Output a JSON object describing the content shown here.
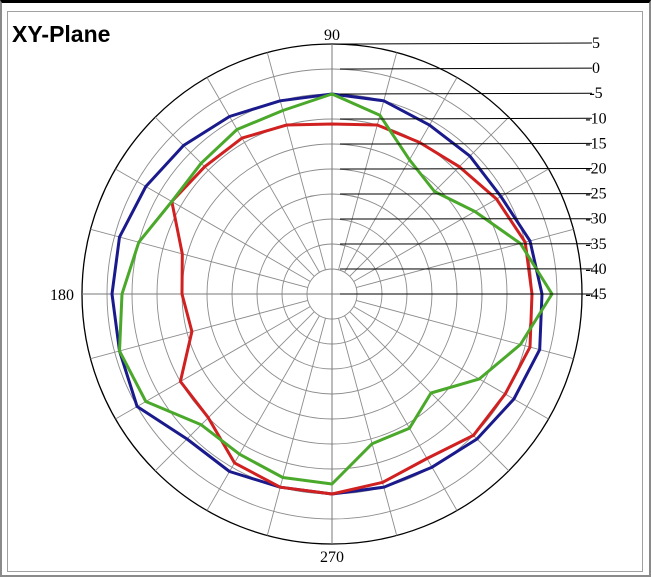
{
  "chart_data": {
    "type": "polar",
    "title": "XY-Plane",
    "angle_labels": [
      {
        "deg": 90,
        "text": "90"
      },
      {
        "deg": 180,
        "text": "180"
      },
      {
        "deg": 270,
        "text": "270"
      }
    ],
    "radial_ticks": [
      "5",
      "0",
      "-5",
      "-10",
      "-15",
      "-20",
      "-25",
      "-30",
      "-35",
      "-40",
      "-45"
    ],
    "rlim": [
      -45,
      5
    ],
    "angular_step_deg": 15,
    "grid": true,
    "series": [
      {
        "color": "#1a1a8c",
        "points": [
          [
            0,
            -3
          ],
          [
            15,
            -4
          ],
          [
            30,
            -6
          ],
          [
            45,
            -6
          ],
          [
            60,
            -6
          ],
          [
            75,
            -5
          ],
          [
            90,
            -5
          ],
          [
            105,
            -5
          ],
          [
            120,
            -4
          ],
          [
            135,
            -3
          ],
          [
            150,
            -2
          ],
          [
            165,
            -1
          ],
          [
            180,
            -1
          ],
          [
            195,
            -1
          ],
          [
            210,
            0
          ],
          [
            225,
            -4
          ],
          [
            240,
            -4
          ],
          [
            255,
            -5
          ],
          [
            270,
            -5
          ],
          [
            285,
            -5
          ],
          [
            300,
            -5
          ],
          [
            315,
            -4
          ],
          [
            330,
            -3
          ],
          [
            345,
            -2
          ],
          [
            360,
            -3
          ]
        ]
      },
      {
        "color": "#d02020",
        "points": [
          [
            0,
            -5
          ],
          [
            15,
            -5
          ],
          [
            30,
            -7
          ],
          [
            45,
            -9
          ],
          [
            60,
            -10
          ],
          [
            75,
            -10
          ],
          [
            90,
            -11
          ],
          [
            105,
            -10
          ],
          [
            120,
            -9
          ],
          [
            135,
            -9
          ],
          [
            150,
            -8
          ],
          [
            165,
            -14
          ],
          [
            180,
            -15
          ],
          [
            195,
            -16
          ],
          [
            210,
            -10
          ],
          [
            225,
            -10
          ],
          [
            240,
            -6
          ],
          [
            255,
            -5
          ],
          [
            270,
            -5
          ],
          [
            285,
            -6
          ],
          [
            300,
            -7
          ],
          [
            315,
            -5
          ],
          [
            330,
            -5
          ],
          [
            345,
            -4
          ],
          [
            360,
            -5
          ]
        ]
      },
      {
        "color": "#4aa82a",
        "points": [
          [
            0,
            -1
          ],
          [
            15,
            -6
          ],
          [
            30,
            -12
          ],
          [
            45,
            -16
          ],
          [
            60,
            -14
          ],
          [
            75,
            -8
          ],
          [
            90,
            -5
          ],
          [
            105,
            -7
          ],
          [
            120,
            -7
          ],
          [
            135,
            -8
          ],
          [
            150,
            -8
          ],
          [
            165,
            -5
          ],
          [
            180,
            -3
          ],
          [
            195,
            -1
          ],
          [
            210,
            -2
          ],
          [
            225,
            -8
          ],
          [
            240,
            -8
          ],
          [
            255,
            -7
          ],
          [
            270,
            -7
          ],
          [
            285,
            -14
          ],
          [
            300,
            -14
          ],
          [
            315,
            -17
          ],
          [
            330,
            -11
          ],
          [
            345,
            -6
          ],
          [
            360,
            -1
          ]
        ]
      }
    ]
  }
}
